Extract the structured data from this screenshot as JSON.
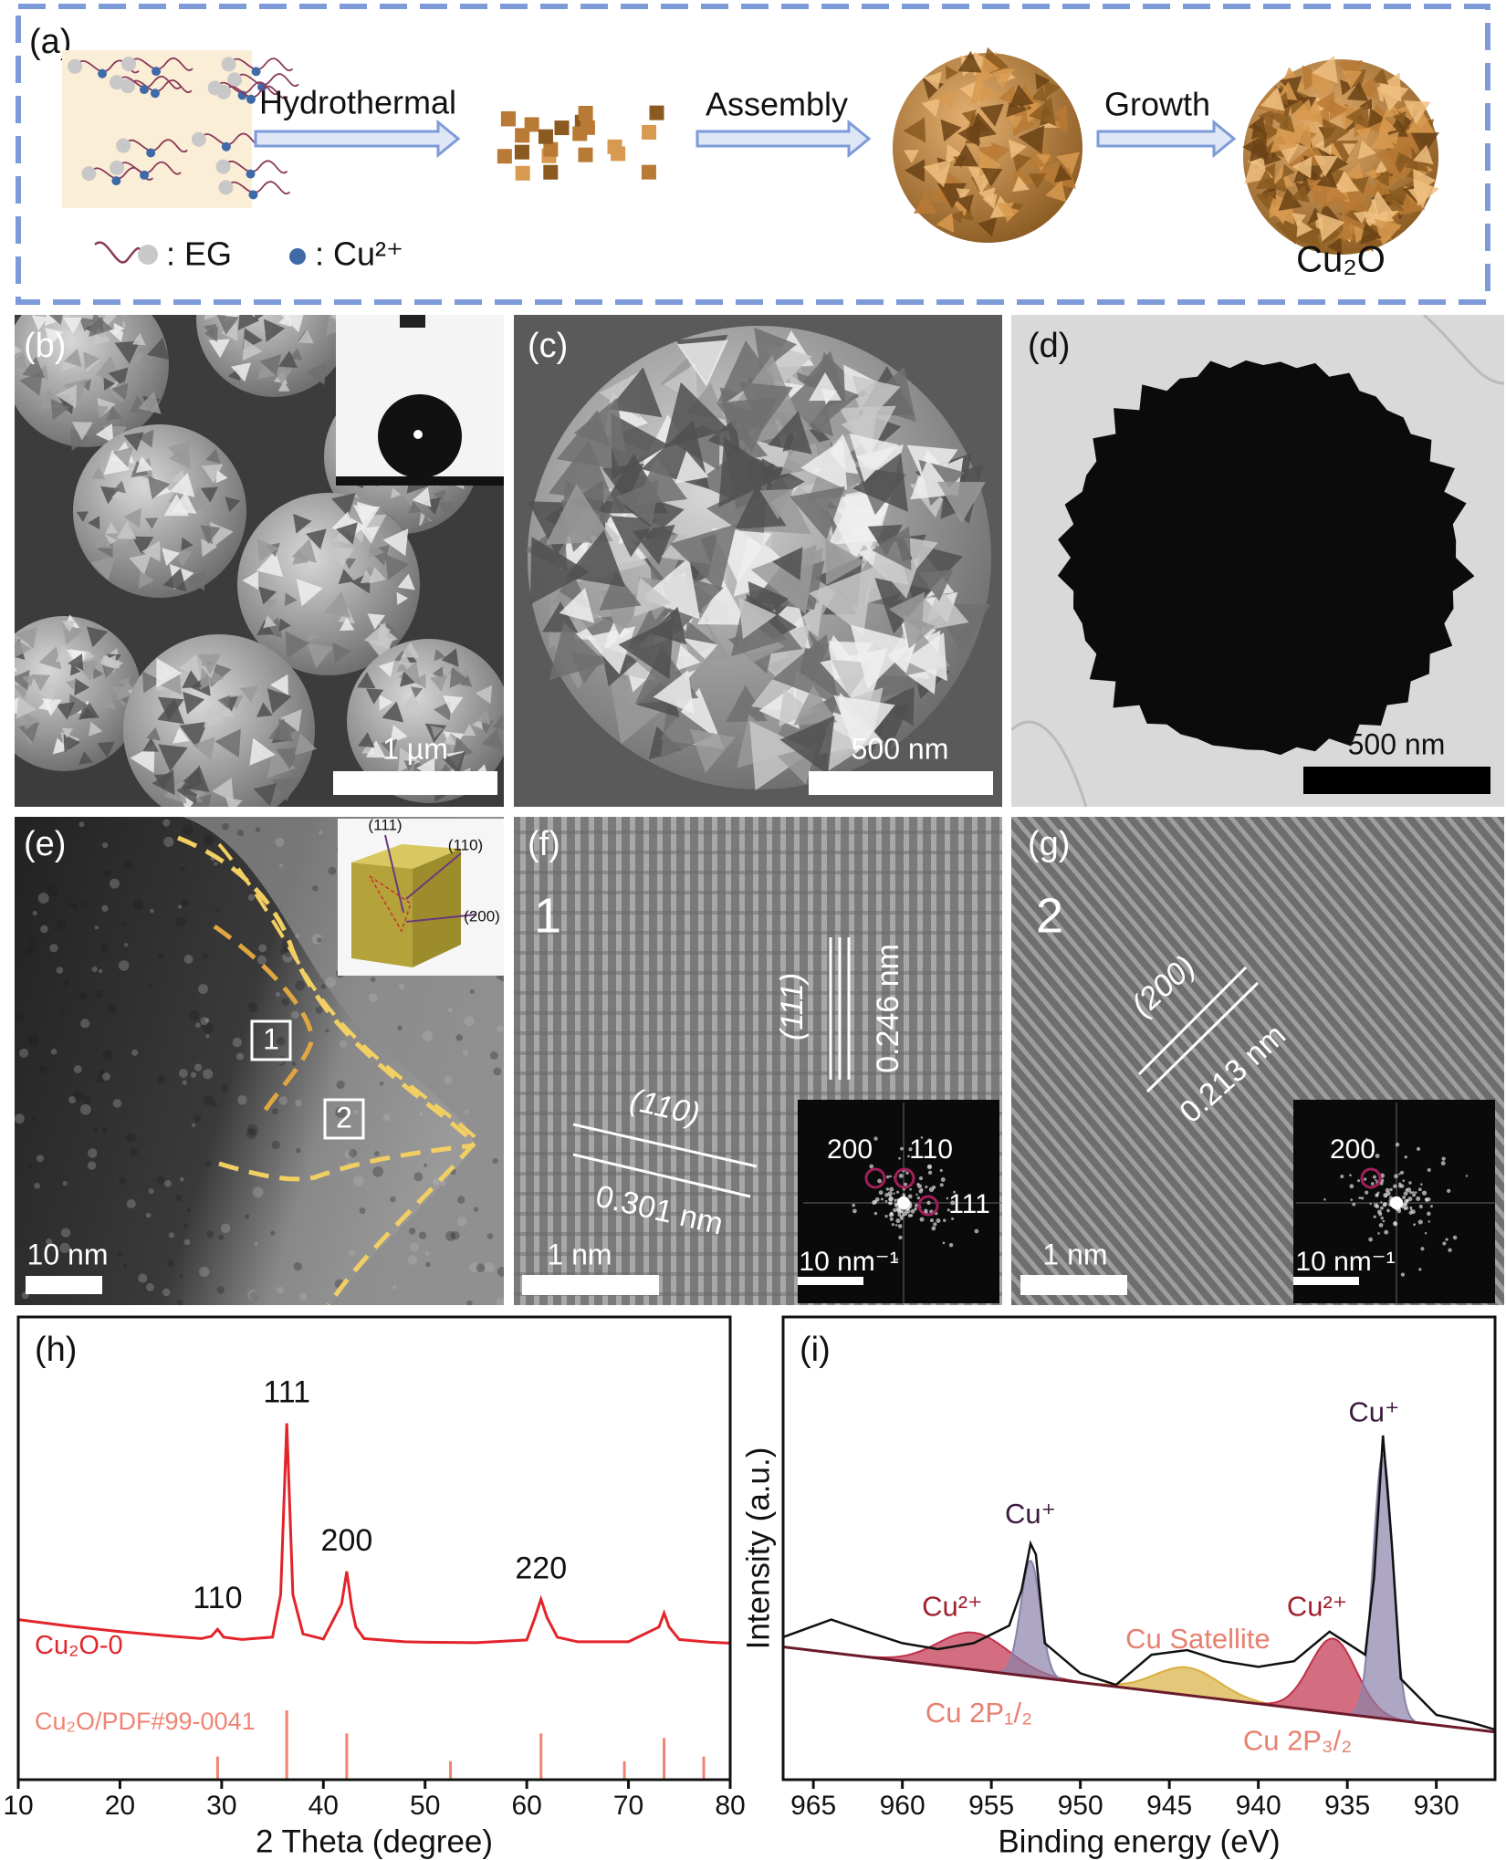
{
  "panel_a": {
    "label": "(a)",
    "steps": [
      "Hydrothermal",
      "Assembly",
      "Growth"
    ],
    "legend_eg": ": EG",
    "legend_cu": ": Cu²⁺",
    "product": "Cu₂O"
  },
  "panel_b": {
    "label": "(b)",
    "scale_bar": "1 µm"
  },
  "panel_c": {
    "label": "(c)",
    "scale_bar": "500 nm"
  },
  "panel_d": {
    "label": "(d)",
    "scale_bar": "500 nm"
  },
  "panel_e": {
    "label": "(e)",
    "scale_bar": "10 nm",
    "facets": [
      "(111)",
      "(110)",
      "(200)"
    ],
    "regions": [
      "1",
      "2"
    ]
  },
  "panel_f": {
    "label": "(f)",
    "region": "1",
    "planes": [
      {
        "plane": "(111)",
        "spacing": "0.246 nm"
      },
      {
        "plane": "(110)",
        "spacing": "0.301 nm"
      }
    ],
    "fft_spots": [
      "200",
      "110",
      "111"
    ],
    "fft_scale_bar": "10 nm⁻¹",
    "scale_bar": "1 nm"
  },
  "panel_g": {
    "label": "(g)",
    "region": "2",
    "planes": [
      {
        "plane": "(200)",
        "spacing": "0.213 nm"
      }
    ],
    "fft_spots": [
      "200"
    ],
    "fft_scale_bar": "10 nm⁻¹",
    "scale_bar": "1 nm"
  },
  "chart_data": [
    {
      "type": "xrd",
      "panel_label": "(h)",
      "x_label": "2 Theta (degree)",
      "xlim": [
        10,
        80
      ],
      "xticks": [
        10,
        20,
        30,
        40,
        50,
        60,
        70,
        80
      ],
      "ylim": [
        0,
        100
      ],
      "series": [
        {
          "name": "Cu₂O-0",
          "color": "#e3242b",
          "x": [
            10,
            15,
            20,
            25,
            28,
            29,
            29.6,
            30.2,
            32,
            35,
            35.8,
            36.4,
            37,
            38,
            40,
            41.8,
            42.3,
            42.8,
            43.2,
            44,
            48,
            50,
            55,
            60,
            60.8,
            61.4,
            62,
            63,
            65,
            70,
            73,
            73.5,
            74,
            75,
            78,
            80
          ],
          "values": [
            34.6,
            33.2,
            32,
            31,
            30.5,
            31,
            32.5,
            30.8,
            30.3,
            30.8,
            40,
            77,
            40,
            31.5,
            30.4,
            38,
            45,
            37,
            33,
            30.5,
            29.8,
            29.7,
            29.6,
            30.2,
            35,
            39,
            35,
            30.8,
            29.8,
            29.8,
            33,
            36,
            33,
            30.3,
            29.7,
            29.5
          ]
        }
      ],
      "reference": {
        "name": "Cu₂O/PDF#99-0041",
        "color": "#f08474",
        "x": [
          29.6,
          36.4,
          42.3,
          52.5,
          61.4,
          69.6,
          73.5,
          77.4
        ],
        "values": [
          5,
          15,
          10,
          4,
          10,
          4,
          9,
          5
        ]
      },
      "peak_labels": [
        {
          "text": "110",
          "x": 29.6
        },
        {
          "text": "111",
          "x": 36.4
        },
        {
          "text": "200",
          "x": 42.3
        },
        {
          "text": "220",
          "x": 61.4
        }
      ]
    },
    {
      "type": "xps",
      "panel_label": "(i)",
      "x_label": "Binding energy (eV)",
      "y_label": "Intensity (a.u.)",
      "xlim": [
        966.7,
        926.7
      ],
      "xticks": [
        965,
        960,
        955,
        950,
        945,
        940,
        935,
        930
      ],
      "ylim": [
        0,
        100
      ],
      "series": [
        {
          "color": "#111111",
          "x": [
            966.7,
            964,
            962,
            960,
            958,
            956,
            954,
            953.3,
            952.8,
            952.5,
            952,
            950,
            948,
            946,
            944,
            942,
            940,
            938,
            936,
            935,
            934,
            933.5,
            933,
            932.5,
            932,
            930,
            928,
            926.7
          ],
          "values": [
            30.8,
            34.6,
            32,
            29.5,
            28.2,
            29.5,
            33.3,
            41,
            51,
            48.7,
            29.5,
            23,
            20.5,
            27,
            28,
            25.6,
            24.4,
            25.6,
            32,
            29.5,
            27,
            43.6,
            74.4,
            51,
            21.8,
            14,
            12.3,
            10.8
          ]
        },
        {
          "color": "#6b1a2a",
          "x": [
            966.7,
            926.7
          ],
          "values": [
            28.7,
            10.3
          ]
        }
      ],
      "components": [
        {
          "center": 956,
          "height": 8,
          "width": 2,
          "color": "#c0304a"
        },
        {
          "center": 952.8,
          "height": 25,
          "width": 0.55,
          "color": "#8a82aa"
        },
        {
          "center": 944,
          "height": 6,
          "width": 1.8,
          "color": "#d8b040"
        },
        {
          "center": 935.8,
          "height": 16,
          "width": 1.3,
          "color": "#c0304a"
        },
        {
          "center": 933,
          "height": 57,
          "width": 0.55,
          "color": "#8a82aa"
        }
      ],
      "annotations": [
        {
          "text": "Cu⁺",
          "x": 952.8,
          "y": 57,
          "color": "#3d1a40"
        },
        {
          "text": "Cu²⁺",
          "x": 957.2,
          "y": 37,
          "color": "#a0202e"
        },
        {
          "text": "Cu Satellite",
          "x": 943.4,
          "y": 30,
          "color": "#e88070"
        },
        {
          "text": "Cu²⁺",
          "x": 936.7,
          "y": 37,
          "color": "#a0202e"
        },
        {
          "text": "Cu⁺",
          "x": 933.5,
          "y": 79,
          "color": "#3d1a40"
        },
        {
          "text": "Cu 2P₁/₂",
          "x": 955.7,
          "y": 14,
          "color": "#e88070"
        },
        {
          "text": "Cu 2P₃/₂",
          "x": 937.8,
          "y": 8,
          "color": "#e88070"
        }
      ]
    }
  ]
}
